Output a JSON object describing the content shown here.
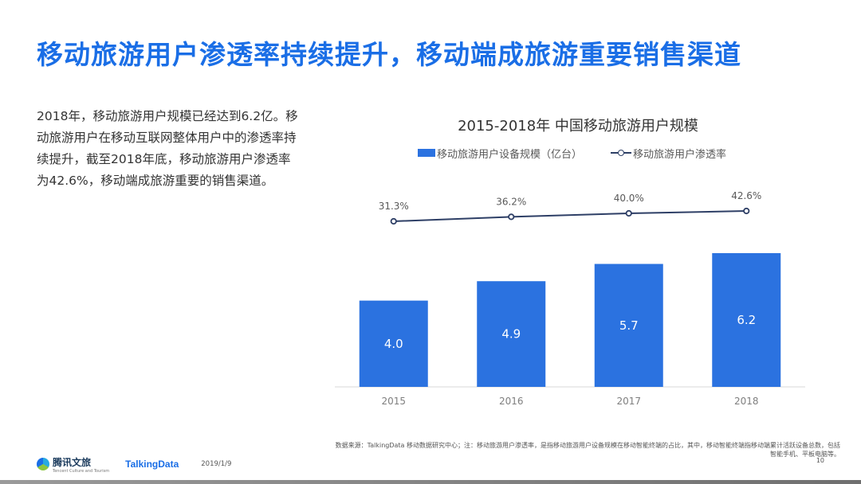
{
  "title": "移动旅游用户渗透率持续提升，移动端成旅游重要销售渠道",
  "summary": "2018年，移动旅游用户规模已经达到6.2亿。移动旅游用户在移动互联网整体用户中的渗透率持续提升，截至2018年底，移动旅游用户渗透率为42.6%，移动端成旅游重要的销售渠道。",
  "chart_data": {
    "type": "bar",
    "title": "2015-2018年 中国移动旅游用户规模",
    "categories": [
      "2015",
      "2016",
      "2017",
      "2018"
    ],
    "series": [
      {
        "name": "移动旅游用户设备规模（亿台）",
        "type": "bar",
        "values": [
          4.0,
          4.9,
          5.7,
          6.2
        ],
        "labels": [
          "4.0",
          "4.9",
          "5.7",
          "6.2"
        ],
        "color": "#2b72e0"
      },
      {
        "name": "移动旅游用户渗透率",
        "type": "line",
        "values": [
          31.3,
          36.2,
          40.0,
          42.6
        ],
        "labels": [
          "31.3%",
          "36.2%",
          "40.0%",
          "42.6%"
        ],
        "color": "#2e3f66"
      }
    ],
    "legend_position": "top",
    "grid": false
  },
  "footer": {
    "logo_brand": "腾讯文旅",
    "logo_brand_sub": "Tencent Culture and Tourism",
    "logo_partner": "TalkingData",
    "date": "2019/1/9",
    "source_note": "数据来源：TalkingData  移动数据研究中心；注：移动旅游用户渗透率，是指移动旅游用户设备规模在移动智能终端的占比，其中，移动智能终端指移动端累计活跃设备总数，包括智能手机、平板电脑等。",
    "page_number": "10"
  }
}
